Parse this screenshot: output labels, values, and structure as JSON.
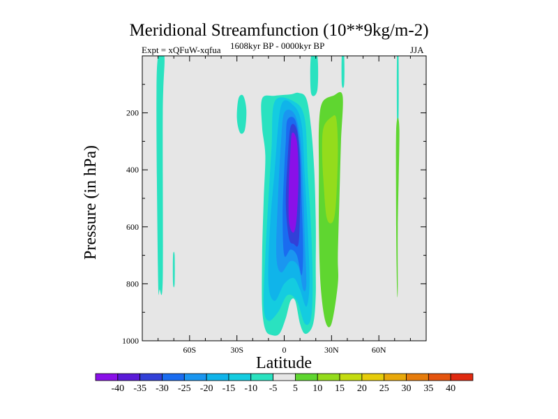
{
  "chart_data": {
    "type": "heatmap",
    "plot_style": "filled-contour",
    "title": "Meridional Streamfunction (10**9kg/m-2)",
    "left_string": "Expt = xQFuW-xqfua",
    "center_string": "1608kyr BP - 0000kyr BP",
    "right_string": "JJA",
    "xlabel": "Latitude",
    "ylabel": "Pressure (in hPa)",
    "xlim": [
      -90,
      90
    ],
    "ylim": [
      0,
      1000
    ],
    "y_reversed": true,
    "x_ticks": [
      {
        "value": -60,
        "label": "60S"
      },
      {
        "value": -30,
        "label": "30S"
      },
      {
        "value": 0,
        "label": "0"
      },
      {
        "value": 30,
        "label": "30N"
      },
      {
        "value": 60,
        "label": "60N"
      }
    ],
    "y_ticks": [
      {
        "value": 200,
        "label": "200"
      },
      {
        "value": 400,
        "label": "400"
      },
      {
        "value": 600,
        "label": "600"
      },
      {
        "value": 800,
        "label": "800"
      },
      {
        "value": 1000,
        "label": "1000"
      }
    ],
    "background_color": "#e6e6e6",
    "colorbar": {
      "labels": [
        "-40",
        "-35",
        "-30",
        "-25",
        "-20",
        "-15",
        "-10",
        "-5",
        "5",
        "10",
        "15",
        "20",
        "25",
        "30",
        "35",
        "40"
      ],
      "colors": [
        "#8a10e8",
        "#5a1ad8",
        "#3240d8",
        "#1a6cf0",
        "#1a96f0",
        "#10b4ea",
        "#14cce0",
        "#2ae2c0",
        "#e6e6e6",
        "#5fd630",
        "#94dc1c",
        "#c4dc10",
        "#e6cc0a",
        "#e8a80a",
        "#e67c0c",
        "#e4540e",
        "#e02a10"
      ]
    },
    "regions": [
      {
        "level": -10,
        "color": "#2ae2c0",
        "points": [
          [
            -80,
            0
          ],
          [
            -76,
            0
          ],
          [
            -77,
            200
          ],
          [
            -77,
            780
          ],
          [
            -79,
            820
          ],
          [
            -80,
            780
          ],
          [
            -81,
            200
          ]
        ]
      },
      {
        "level": -10,
        "color": "#2ae2c0",
        "points": [
          [
            -70.5,
            700
          ],
          [
            -69.5,
            700
          ],
          [
            -69.5,
            800
          ],
          [
            -70.5,
            800
          ]
        ]
      },
      {
        "level": -10,
        "color": "#2ae2c0",
        "points": [
          [
            -29,
            150
          ],
          [
            -26,
            140
          ],
          [
            -24,
            190
          ],
          [
            -25,
            260
          ],
          [
            -28,
            270
          ],
          [
            -30,
            220
          ]
        ]
      },
      {
        "level": -10,
        "color": "#2ae2c0",
        "points": [
          [
            -14,
            150
          ],
          [
            -6,
            140
          ],
          [
            4,
            135
          ],
          [
            9,
            130
          ],
          [
            14,
            150
          ],
          [
            17,
            250
          ],
          [
            19,
            400
          ],
          [
            20,
            580
          ],
          [
            20,
            740
          ],
          [
            20,
            840
          ],
          [
            19,
            920
          ],
          [
            17,
            960
          ],
          [
            13,
            975
          ],
          [
            10,
            940
          ],
          [
            7,
            860
          ],
          [
            4,
            860
          ],
          [
            1,
            920
          ],
          [
            -3,
            975
          ],
          [
            -8,
            980
          ],
          [
            -12,
            960
          ],
          [
            -14,
            880
          ],
          [
            -14,
            700
          ],
          [
            -13,
            500
          ],
          [
            -12,
            350
          ],
          [
            -14,
            250
          ]
        ]
      },
      {
        "level": -10,
        "color": "#2ae2c0",
        "points": [
          [
            17,
            0
          ],
          [
            21,
            0
          ],
          [
            21,
            120
          ],
          [
            17,
            130
          ]
        ]
      },
      {
        "level": -10,
        "color": "#2ae2c0",
        "points": [
          [
            36.5,
            0
          ],
          [
            38,
            0
          ],
          [
            38,
            100
          ],
          [
            36.5,
            100
          ]
        ]
      },
      {
        "level": -10,
        "color": "#2ae2c0",
        "points": [
          [
            71.5,
            0
          ],
          [
            72.5,
            0
          ],
          [
            72.5,
            220
          ],
          [
            71.5,
            220
          ]
        ]
      },
      {
        "level": -15,
        "color": "#14cce0",
        "points": [
          [
            -6,
            160
          ],
          [
            6,
            160
          ],
          [
            13,
            220
          ],
          [
            15,
            420
          ],
          [
            17,
            600
          ],
          [
            18,
            800
          ],
          [
            17,
            920
          ],
          [
            13,
            940
          ],
          [
            8,
            860
          ],
          [
            2,
            840
          ],
          [
            -4,
            900
          ],
          [
            -10,
            930
          ],
          [
            -13,
            880
          ],
          [
            -12,
            700
          ],
          [
            -10,
            500
          ],
          [
            -8,
            320
          ]
        ]
      },
      {
        "level": -20,
        "color": "#10b4ea",
        "points": [
          [
            -2,
            175
          ],
          [
            6,
            175
          ],
          [
            11,
            240
          ],
          [
            13,
            420
          ],
          [
            15,
            620
          ],
          [
            16,
            800
          ],
          [
            14,
            880
          ],
          [
            10,
            820
          ],
          [
            6,
            780
          ],
          [
            0,
            800
          ],
          [
            -6,
            860
          ],
          [
            -10,
            800
          ],
          [
            -9,
            600
          ],
          [
            -6,
            400
          ]
        ]
      },
      {
        "level": -25,
        "color": "#1a96f0",
        "points": [
          [
            0,
            200
          ],
          [
            6,
            200
          ],
          [
            10,
            280
          ],
          [
            12,
            460
          ],
          [
            13,
            640
          ],
          [
            14,
            800
          ],
          [
            12,
            820
          ],
          [
            9,
            740
          ],
          [
            4,
            720
          ],
          [
            -2,
            760
          ],
          [
            -5,
            700
          ],
          [
            -4,
            500
          ],
          [
            -2,
            300
          ]
        ]
      },
      {
        "level": -30,
        "color": "#1a6cf0",
        "points": [
          [
            2,
            225
          ],
          [
            7,
            225
          ],
          [
            10,
            330
          ],
          [
            11,
            500
          ],
          [
            12,
            680
          ],
          [
            11,
            770
          ],
          [
            8,
            700
          ],
          [
            4,
            680
          ],
          [
            0,
            700
          ],
          [
            -1,
            560
          ],
          [
            0,
            400
          ],
          [
            1,
            300
          ]
        ]
      },
      {
        "level": -35,
        "color": "#3240d8",
        "points": [
          [
            4,
            250
          ],
          [
            8,
            260
          ],
          [
            10,
            380
          ],
          [
            10,
            540
          ],
          [
            9,
            660
          ],
          [
            6,
            660
          ],
          [
            3,
            640
          ],
          [
            1,
            520
          ],
          [
            2,
            380
          ]
        ]
      },
      {
        "level": -40,
        "color": "#8a10e8",
        "points": [
          [
            5,
            270
          ],
          [
            8,
            300
          ],
          [
            9,
            420
          ],
          [
            8,
            560
          ],
          [
            6,
            620
          ],
          [
            3,
            580
          ],
          [
            3,
            440
          ],
          [
            4,
            330
          ]
        ]
      },
      {
        "level": 5,
        "color": "#5fd630",
        "points": [
          [
            24,
            165
          ],
          [
            31,
            140
          ],
          [
            37,
            140
          ],
          [
            36,
            300
          ],
          [
            35,
            500
          ],
          [
            34,
            700
          ],
          [
            34,
            800
          ],
          [
            30,
            940
          ],
          [
            26,
            930
          ],
          [
            23,
            800
          ],
          [
            22,
            600
          ],
          [
            22,
            400
          ],
          [
            22,
            250
          ]
        ]
      },
      {
        "level": 5,
        "color": "#5fd630",
        "points": [
          [
            71,
            260
          ],
          [
            73,
            260
          ],
          [
            72,
            600
          ],
          [
            72,
            820
          ],
          [
            71.5,
            820
          ],
          [
            71,
            600
          ]
        ]
      },
      {
        "level": 10,
        "color": "#94dc1c",
        "points": [
          [
            25,
            250
          ],
          [
            30,
            215
          ],
          [
            33,
            220
          ],
          [
            34,
            330
          ],
          [
            33,
            500
          ],
          [
            31,
            580
          ],
          [
            27,
            570
          ],
          [
            25,
            450
          ],
          [
            24,
            330
          ]
        ]
      }
    ]
  }
}
